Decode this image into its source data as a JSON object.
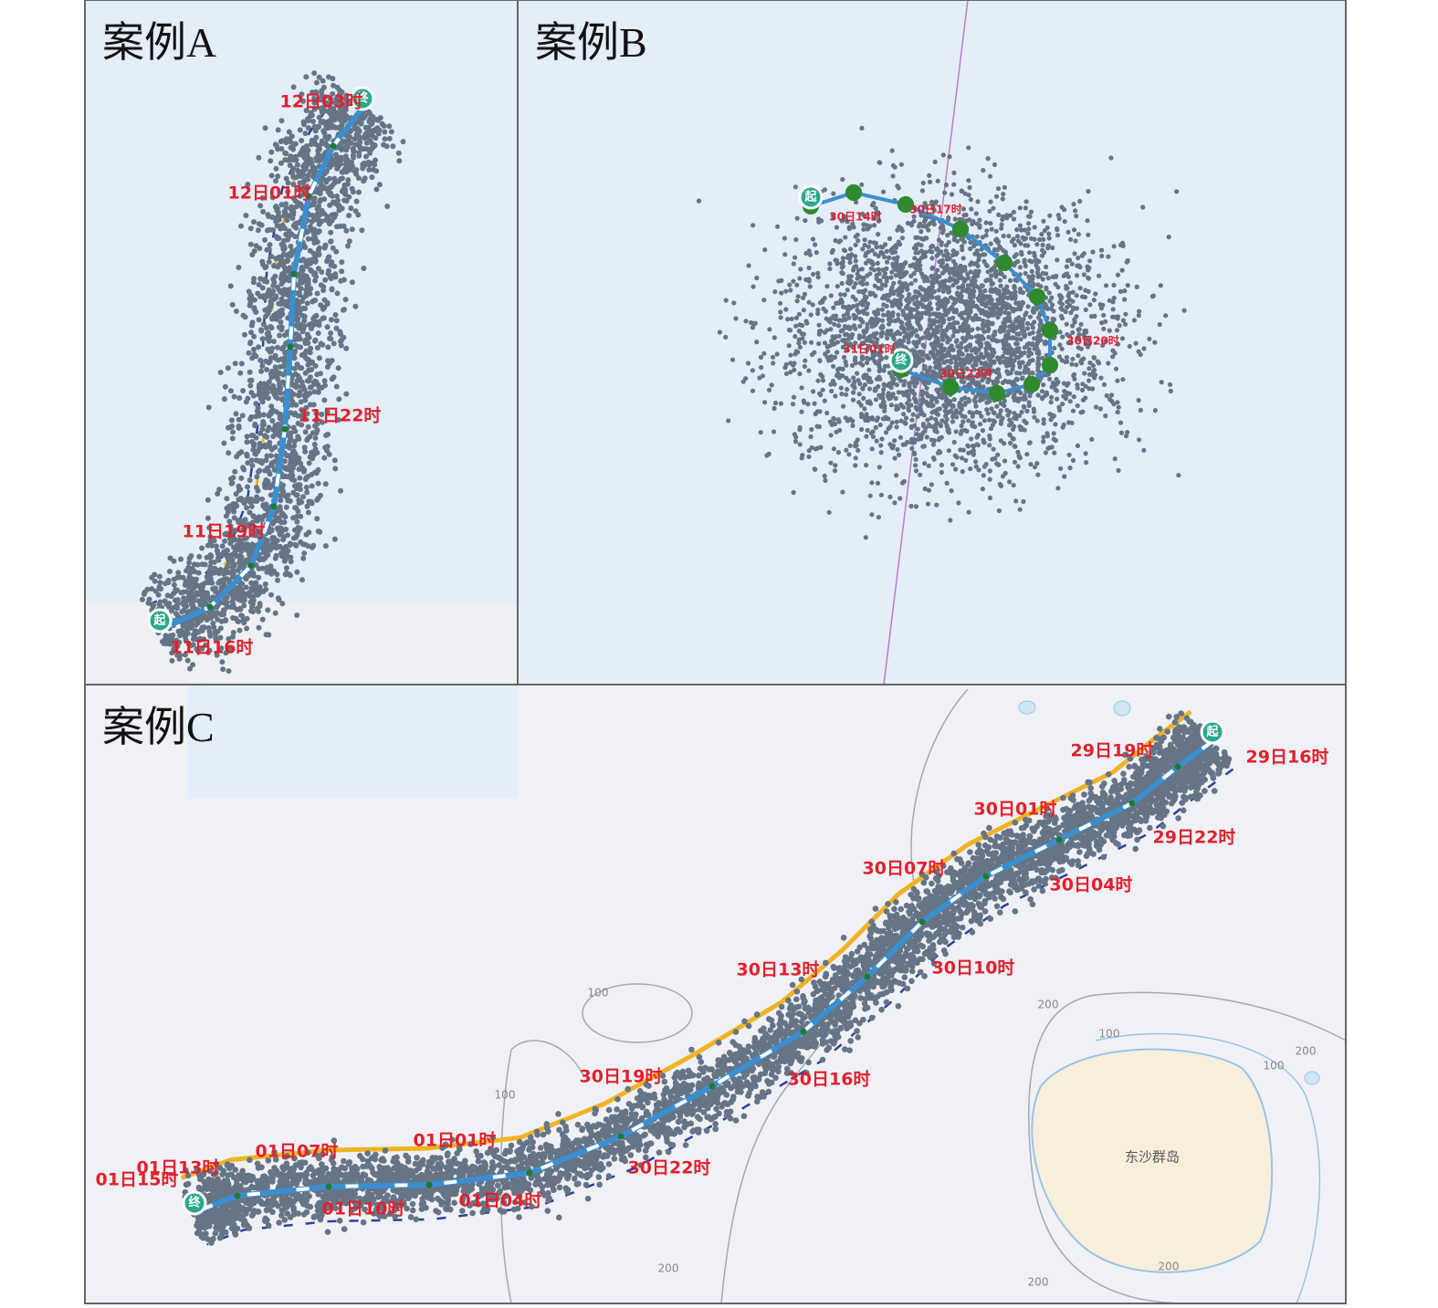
{
  "panels": [
    {
      "title": "案例A",
      "start": "起",
      "end": "终",
      "labels": [
        "12日03时",
        "12日01时",
        "11日22时",
        "11日19时",
        "11日16时"
      ]
    },
    {
      "title": "案例B",
      "start": "起",
      "end": "终",
      "labels": [
        "30日14时",
        "30日17时",
        "30日20时",
        "30日23时",
        "31日01时"
      ]
    },
    {
      "title": "案例C",
      "start": "起",
      "end": "终",
      "labels": [
        "29日19时",
        "29日16时",
        "30日01时",
        "29日22时",
        "30日07时",
        "30日04时",
        "30日13时",
        "30日10时",
        "30日19时",
        "30日16时",
        "01日01时",
        "30日22时",
        "01日07时",
        "01日04时",
        "01日13时",
        "01日15时",
        "01日10时"
      ]
    }
  ],
  "map": {
    "contours": [
      "100",
      "100",
      "200",
      "100",
      "200",
      "100",
      "200",
      "200",
      "200"
    ],
    "island": "东沙群岛"
  }
}
